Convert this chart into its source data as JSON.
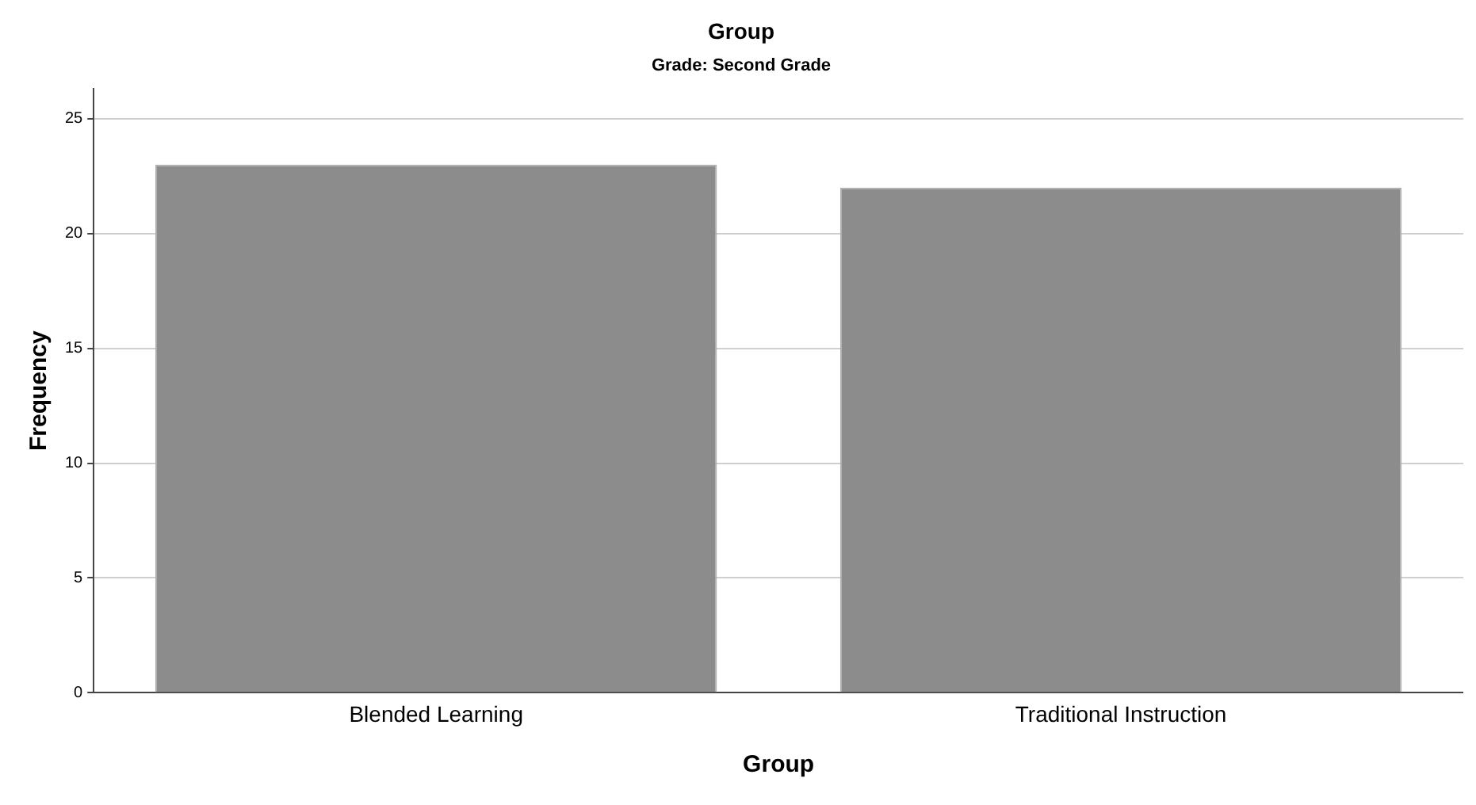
{
  "chart_data": {
    "type": "bar",
    "title": "Group",
    "subtitle": "Grade: Second Grade",
    "xlabel": "Group",
    "ylabel": "Frequency",
    "categories": [
      "Blended Learning",
      "Traditional Instruction"
    ],
    "values": [
      23,
      22
    ],
    "color": "#8c8c8c",
    "ylim": [
      0,
      26.3
    ],
    "yticks": [
      0,
      5,
      10,
      15,
      20,
      25
    ],
    "grid": "y"
  }
}
